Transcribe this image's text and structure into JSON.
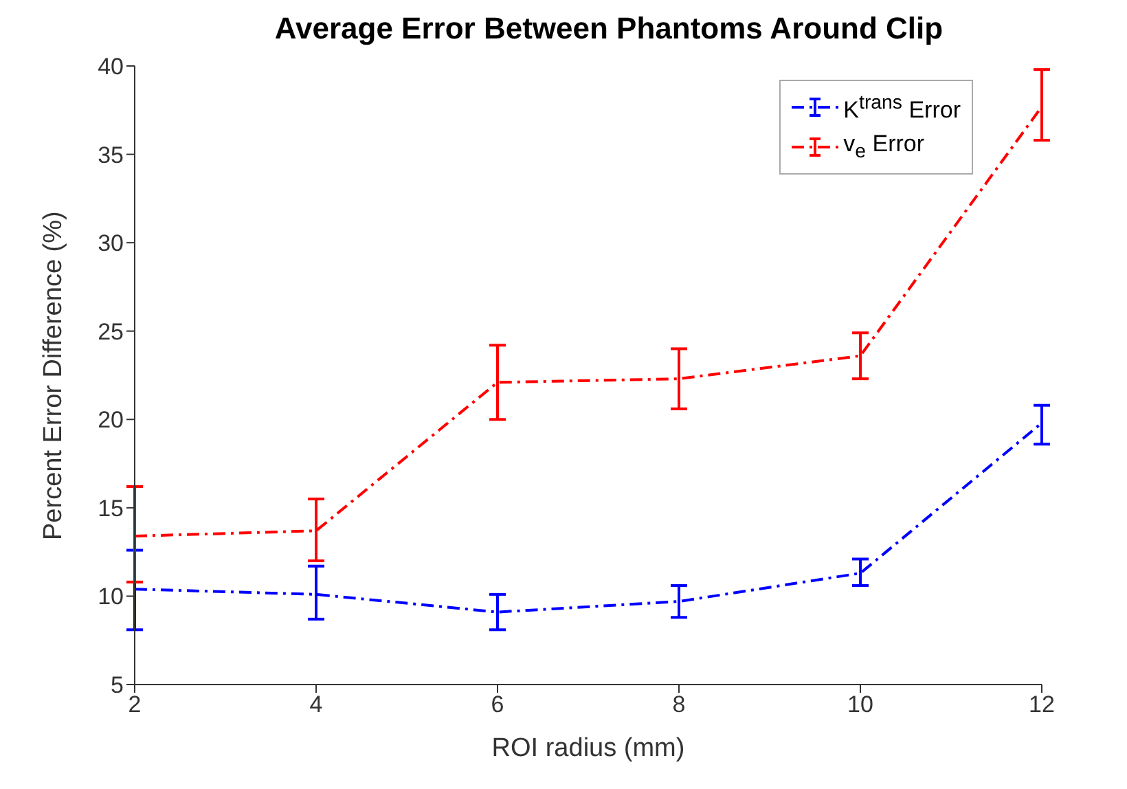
{
  "chart_data": {
    "type": "line",
    "title": "Average Error Between Phantoms Around Clip",
    "xlabel": "ROI radius (mm)",
    "ylabel": "Percent Error Difference (%)",
    "x": [
      2,
      4,
      6,
      8,
      10,
      12
    ],
    "series": [
      {
        "name": "K$^{trans}$ Error",
        "color": "#0000ff",
        "values": [
          10.4,
          10.1,
          9.1,
          9.7,
          11.3,
          19.8
        ],
        "errors": [
          [
            8.1,
            12.6
          ],
          [
            8.7,
            11.7
          ],
          [
            8.1,
            10.1
          ],
          [
            8.8,
            10.6
          ],
          [
            10.6,
            12.1
          ],
          [
            18.6,
            20.8
          ]
        ]
      },
      {
        "name": "v$_{e}$ Error",
        "color": "#ff0000",
        "values": [
          13.4,
          13.7,
          22.1,
          22.3,
          23.6,
          37.7
        ],
        "errors": [
          [
            10.8,
            16.2
          ],
          [
            12.0,
            15.5
          ],
          [
            20.0,
            24.2
          ],
          [
            20.6,
            24.0
          ],
          [
            22.3,
            24.9
          ],
          [
            35.8,
            39.8
          ]
        ]
      }
    ],
    "xlim": [
      2,
      12
    ],
    "xticks": [
      2,
      4,
      6,
      8,
      10,
      12
    ],
    "ylim": [
      5,
      40
    ],
    "yticks": [
      5,
      10,
      15,
      20,
      25,
      30,
      35,
      40
    ],
    "legend": "top right",
    "marker": "none",
    "line_style": "dashed"
  }
}
